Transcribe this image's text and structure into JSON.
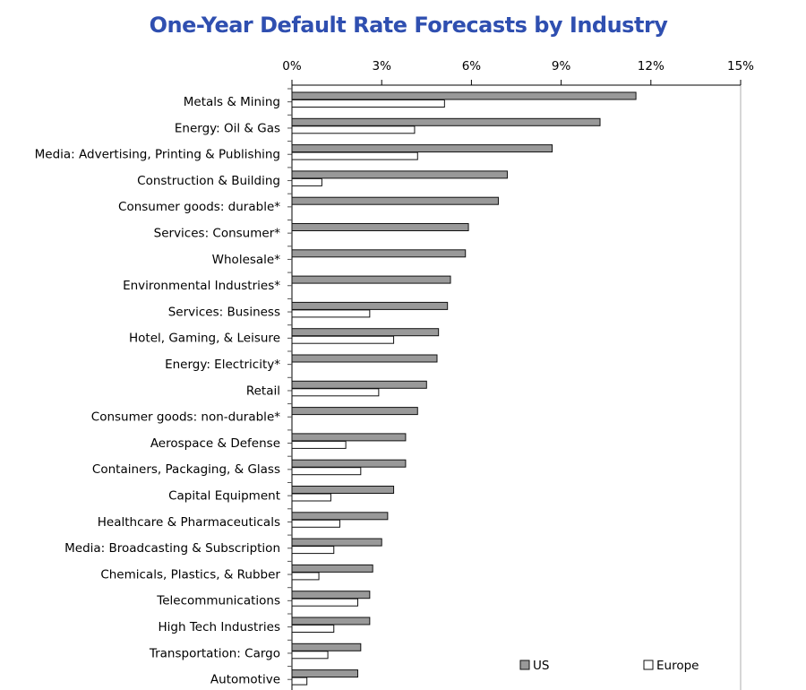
{
  "chart_data": {
    "type": "bar",
    "orientation": "horizontal",
    "title": "One-Year Default Rate Forecasts by Industry",
    "xlabel": "",
    "ylabel": "",
    "xlim": [
      0,
      15
    ],
    "x_ticks": [
      "0%",
      "3%",
      "6%",
      "9%",
      "12%",
      "15%"
    ],
    "legend_position": "bottom-right",
    "categories": [
      "Metals & Mining",
      "Energy: Oil & Gas",
      "Media: Advertising, Printing & Publishing",
      "Construction & Building",
      "Consumer goods: durable*",
      "Services: Consumer*",
      "Wholesale*",
      "Environmental Industries*",
      "Services: Business",
      "Hotel, Gaming, & Leisure",
      "Energy: Electricity*",
      "Retail",
      "Consumer goods: non-durable*",
      "Aerospace & Defense",
      "Containers, Packaging, & Glass",
      "Capital Equipment",
      "Healthcare & Pharmaceuticals",
      "Media: Broadcasting & Subscription",
      "Chemicals, Plastics, & Rubber",
      "Telecommunications",
      "High Tech Industries",
      "Transportation: Cargo",
      "Automotive"
    ],
    "series": [
      {
        "name": "US",
        "color": "#999999",
        "values": [
          11.5,
          10.3,
          8.7,
          7.2,
          6.9,
          5.9,
          5.8,
          5.3,
          5.2,
          4.9,
          4.85,
          4.5,
          4.2,
          3.8,
          3.8,
          3.4,
          3.2,
          3.0,
          2.7,
          2.6,
          2.6,
          2.3,
          2.2
        ]
      },
      {
        "name": "Europe",
        "color": "#ffffff",
        "values": [
          5.1,
          4.1,
          4.2,
          1.0,
          null,
          null,
          null,
          null,
          2.6,
          3.4,
          null,
          2.9,
          null,
          1.8,
          2.3,
          1.3,
          1.6,
          1.4,
          0.9,
          2.2,
          1.4,
          1.2,
          0.5
        ]
      }
    ]
  }
}
